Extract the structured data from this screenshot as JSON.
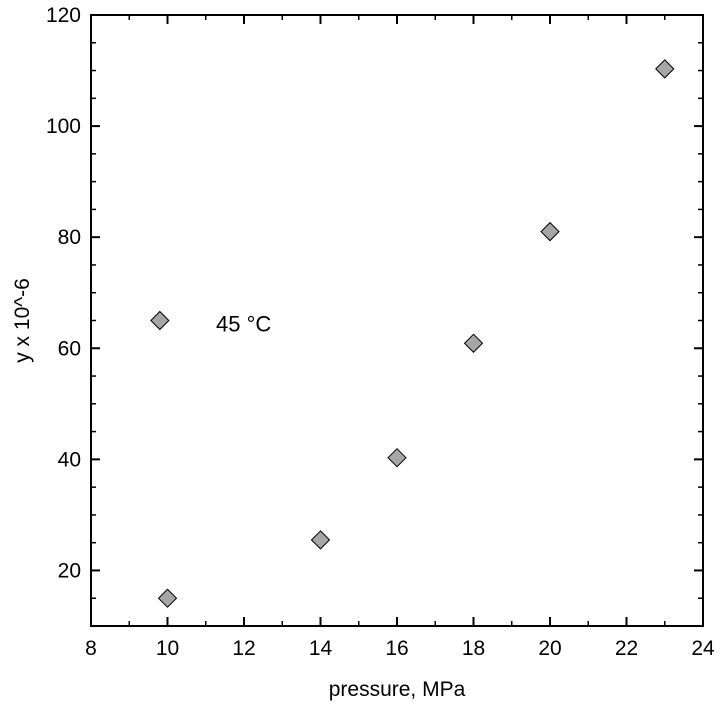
{
  "chart_data": {
    "type": "scatter",
    "title": "",
    "xlabel": "pressure, MPa",
    "ylabel": "y x 10^-6",
    "xlim": [
      8,
      24
    ],
    "ylim": [
      10,
      120
    ],
    "xticks": [
      8,
      10,
      12,
      14,
      16,
      18,
      20,
      22,
      24
    ],
    "yticks": [
      20,
      40,
      60,
      80,
      100,
      120
    ],
    "x_minor_step": 1,
    "y_minor_step": 5,
    "grid": false,
    "marker": "diamond",
    "marker_color": "#a6a6a6",
    "series": [
      {
        "x": [
          10,
          14,
          16,
          18,
          20,
          23
        ],
        "y": [
          15,
          25.5,
          40.3,
          60.9,
          81,
          110.3
        ]
      }
    ],
    "legend": {
      "marker_x": 9.8,
      "marker_y": 65,
      "label": "45 °C"
    }
  }
}
